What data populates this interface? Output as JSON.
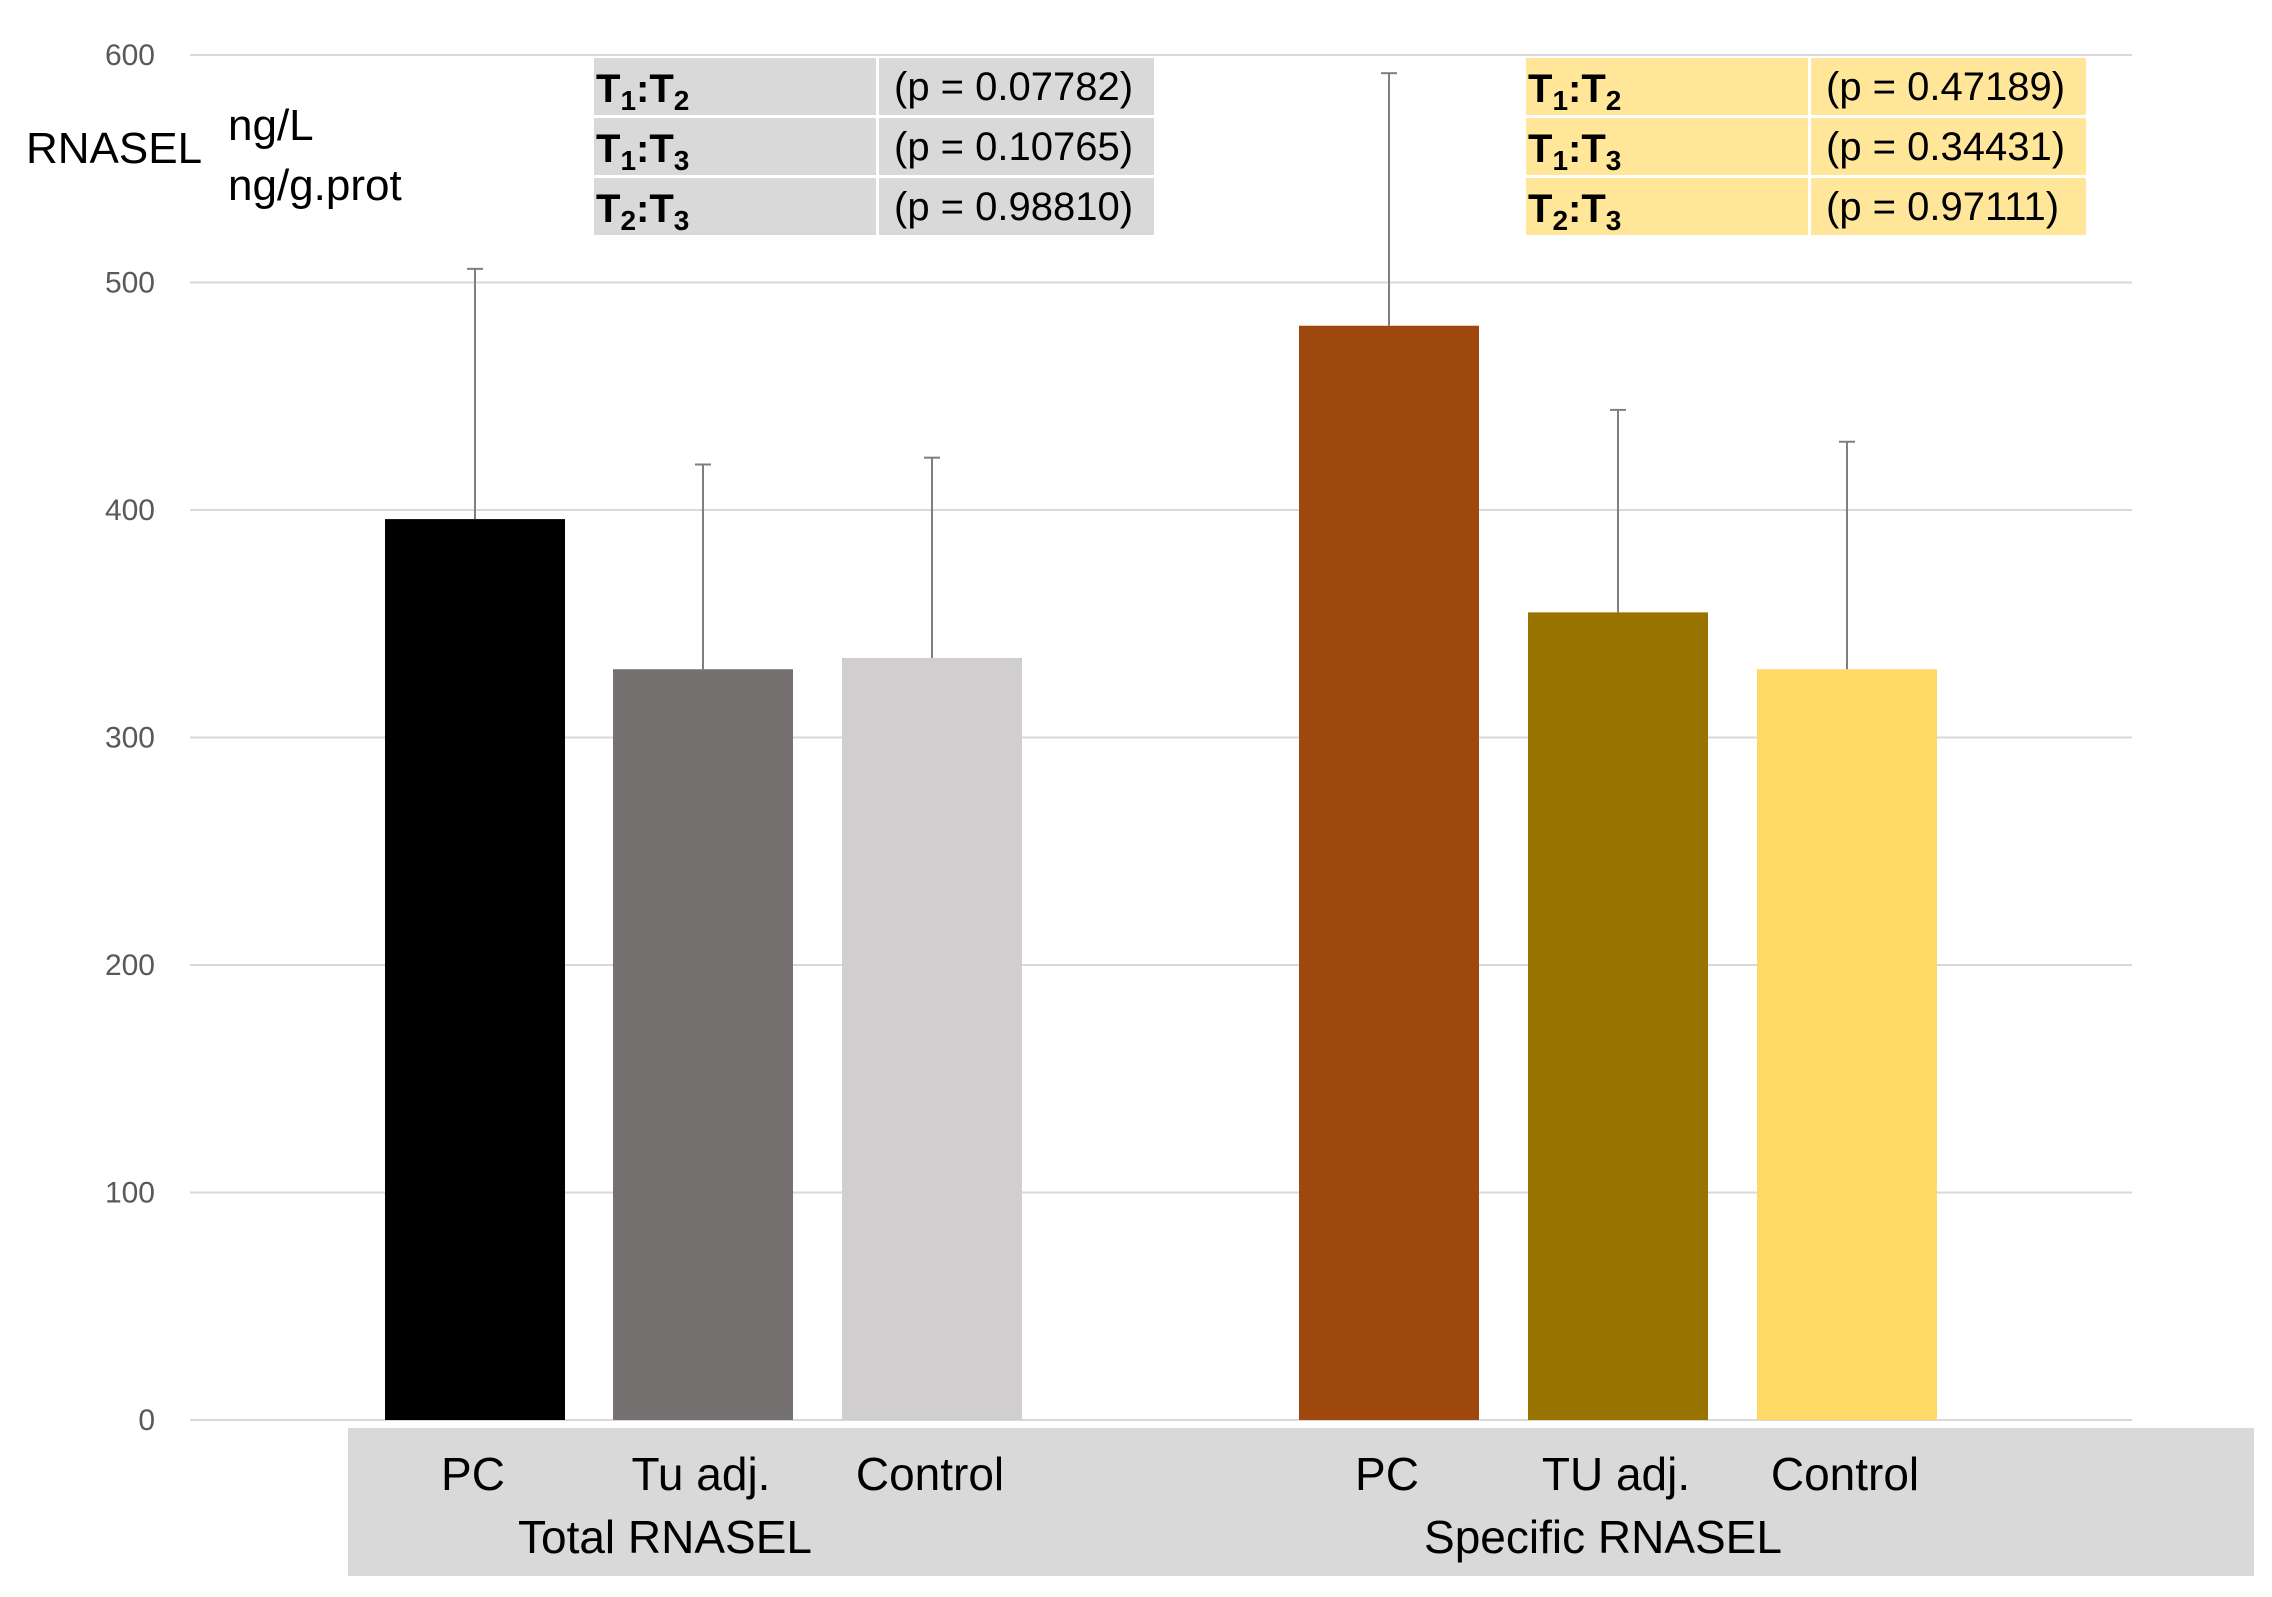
{
  "chart_data": {
    "type": "bar",
    "ylabel": "RNASEL",
    "units": [
      "ng/L",
      "ng/g.prot"
    ],
    "ylim": [
      0,
      600
    ],
    "yticks": [
      0,
      100,
      200,
      300,
      400,
      500,
      600
    ],
    "grid": true,
    "groups": [
      {
        "name": "Total RNASEL",
        "bars": [
          {
            "label": "PC",
            "value": 396,
            "error": 110,
            "color": "#000000"
          },
          {
            "label": "Tu adj.",
            "value": 330,
            "error": 90,
            "color": "#767171"
          },
          {
            "label": "Control",
            "value": 335,
            "error": 88,
            "color": "#d0cece"
          }
        ],
        "pvalues": {
          "background": "#d9d9d9",
          "rows": [
            {
              "a": "T",
              "a_sub": "1",
              "b": "T",
              "b_sub": "2",
              "text": "(p = 0.07782)"
            },
            {
              "a": "T",
              "a_sub": "1",
              "b": "T",
              "b_sub": "3",
              "text": "(p = 0.10765)"
            },
            {
              "a": "T",
              "a_sub": "2",
              "b": "T",
              "b_sub": "3",
              "text": "(p = 0.98810)"
            }
          ]
        }
      },
      {
        "name": "Specific RNASEL",
        "bars": [
          {
            "label": "PC",
            "value": 481,
            "error": 111,
            "color": "#9e480e"
          },
          {
            "label": "TU adj.",
            "value": 355,
            "error": 89,
            "color": "#997300"
          },
          {
            "label": "Control",
            "value": 330,
            "error": 100,
            "color": "#ffd966"
          }
        ],
        "pvalues": {
          "background": "#ffe699",
          "rows": [
            {
              "a": "T",
              "a_sub": "1",
              "b": "T",
              "b_sub": "2",
              "text": "(p = 0.47189)"
            },
            {
              "a": "T",
              "a_sub": "1",
              "b": "T",
              "b_sub": "3",
              "text": "(p = 0.34431)"
            },
            {
              "a": "T",
              "a_sub": "2",
              "b": "T",
              "b_sub": "3",
              "text": "(p = 0.97111)"
            }
          ]
        }
      }
    ]
  },
  "colors": {
    "grid": "#d9d9d9",
    "error_bar": "#7f7f7f",
    "category_band": "#d9d9d9"
  }
}
